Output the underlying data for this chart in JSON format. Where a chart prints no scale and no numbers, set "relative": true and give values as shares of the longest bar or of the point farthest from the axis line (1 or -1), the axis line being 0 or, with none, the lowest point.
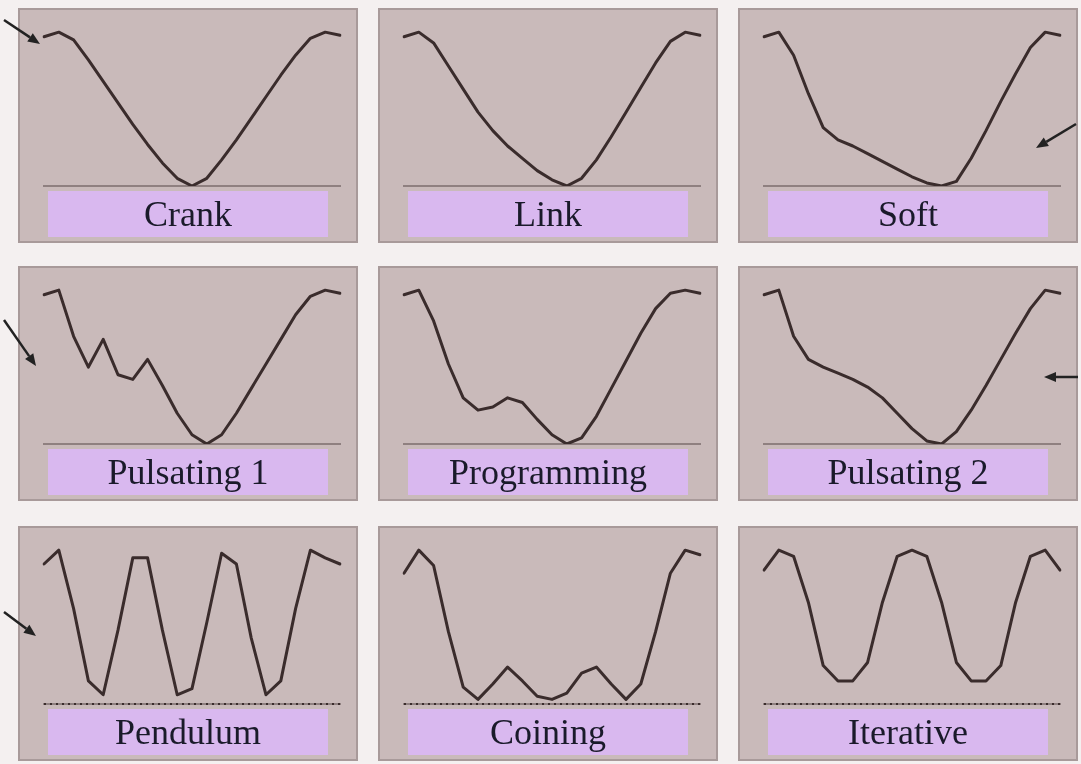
{
  "chart_data": [
    {
      "type": "line",
      "relative": true,
      "title": "Crank",
      "categories": [
        null,
        null,
        null,
        null,
        null,
        null,
        null,
        null,
        null,
        null,
        null,
        null,
        null,
        null,
        null,
        null,
        null,
        null,
        null,
        null,
        null
      ],
      "series": [
        {
          "color": "#3a2c2c",
          "values": [
            0.97,
            1,
            0.95,
            0.82,
            0.68,
            0.54,
            0.4,
            0.27,
            0.15,
            0.05,
            0,
            0.05,
            0.17,
            0.3,
            0.44,
            0.58,
            0.72,
            0.85,
            0.96,
            1,
            0.98
          ]
        }
      ]
    },
    {
      "type": "line",
      "relative": true,
      "title": "Link",
      "categories": [
        null,
        null,
        null,
        null,
        null,
        null,
        null,
        null,
        null,
        null,
        null,
        null,
        null,
        null,
        null,
        null,
        null,
        null,
        null,
        null,
        null
      ],
      "series": [
        {
          "color": "#3a2c2c",
          "values": [
            0.97,
            1,
            0.93,
            0.78,
            0.63,
            0.48,
            0.36,
            0.26,
            0.18,
            0.1,
            0.04,
            0,
            0.05,
            0.17,
            0.32,
            0.48,
            0.64,
            0.8,
            0.94,
            1,
            0.98
          ]
        }
      ]
    },
    {
      "type": "line",
      "relative": true,
      "title": "Soft",
      "categories": [
        null,
        null,
        null,
        null,
        null,
        null,
        null,
        null,
        null,
        null,
        null,
        null,
        null,
        null,
        null,
        null,
        null,
        null,
        null,
        null,
        null
      ],
      "series": [
        {
          "color": "#3a2c2c",
          "values": [
            0.97,
            1,
            0.85,
            0.6,
            0.38,
            0.3,
            0.26,
            0.21,
            0.16,
            0.11,
            0.06,
            0.02,
            0,
            0.03,
            0.18,
            0.36,
            0.55,
            0.73,
            0.9,
            1,
            0.98
          ]
        }
      ]
    },
    {
      "type": "line",
      "relative": true,
      "title": "Pulsating 1",
      "categories": [
        null,
        null,
        null,
        null,
        null,
        null,
        null,
        null,
        null,
        null,
        null,
        null,
        null,
        null,
        null,
        null,
        null,
        null,
        null,
        null,
        null
      ],
      "series": [
        {
          "color": "#3a2c2c",
          "values": [
            0.97,
            1,
            0.7,
            0.5,
            0.68,
            0.45,
            0.42,
            0.55,
            0.38,
            0.2,
            0.06,
            0,
            0.06,
            0.2,
            0.36,
            0.52,
            0.68,
            0.84,
            0.96,
            1,
            0.98
          ]
        }
      ]
    },
    {
      "type": "line",
      "relative": true,
      "title": "Programming",
      "categories": [
        null,
        null,
        null,
        null,
        null,
        null,
        null,
        null,
        null,
        null,
        null,
        null,
        null,
        null,
        null,
        null,
        null,
        null,
        null,
        null,
        null
      ],
      "series": [
        {
          "color": "#3a2c2c",
          "values": [
            0.97,
            1,
            0.8,
            0.52,
            0.3,
            0.22,
            0.24,
            0.3,
            0.27,
            0.16,
            0.06,
            0,
            0.04,
            0.18,
            0.36,
            0.54,
            0.72,
            0.88,
            0.98,
            1,
            0.98
          ]
        }
      ]
    },
    {
      "type": "line",
      "relative": true,
      "title": "Pulsating 2",
      "categories": [
        null,
        null,
        null,
        null,
        null,
        null,
        null,
        null,
        null,
        null,
        null,
        null,
        null,
        null,
        null,
        null,
        null,
        null,
        null,
        null,
        null
      ],
      "series": [
        {
          "color": "#3a2c2c",
          "values": [
            0.97,
            1,
            0.7,
            0.55,
            0.5,
            0.46,
            0.42,
            0.37,
            0.3,
            0.2,
            0.1,
            0.02,
            0,
            0.08,
            0.22,
            0.38,
            0.55,
            0.72,
            0.88,
            1,
            0.98
          ]
        }
      ]
    },
    {
      "type": "line",
      "relative": true,
      "title": "Pendulum",
      "categories": [
        null,
        null,
        null,
        null,
        null,
        null,
        null,
        null,
        null,
        null,
        null,
        null,
        null,
        null,
        null,
        null,
        null,
        null,
        null,
        null,
        null
      ],
      "series": [
        {
          "color": "#3a2c2c",
          "values": [
            0.91,
            1,
            0.62,
            0.15,
            0.06,
            0.48,
            0.95,
            0.95,
            0.48,
            0.06,
            0.1,
            0.53,
            0.98,
            0.91,
            0.43,
            0.06,
            0.15,
            0.62,
            1,
            0.95,
            0.91
          ]
        }
      ],
      "ref_lines": [
        {
          "axis": "y",
          "value": 0,
          "color": "#3a2c2c",
          "line_style": "dotted"
        }
      ]
    },
    {
      "type": "line",
      "relative": true,
      "title": "Coining",
      "categories": [
        null,
        null,
        null,
        null,
        null,
        null,
        null,
        null,
        null,
        null,
        null,
        null,
        null,
        null,
        null,
        null,
        null,
        null,
        null,
        null,
        null
      ],
      "series": [
        {
          "color": "#3a2c2c",
          "values": [
            0.85,
            1,
            0.9,
            0.47,
            0.11,
            0.03,
            0.13,
            0.24,
            0.15,
            0.05,
            0.03,
            0.07,
            0.2,
            0.24,
            0.13,
            0.03,
            0.13,
            0.47,
            0.85,
            1,
            0.97
          ]
        }
      ],
      "ref_lines": [
        {
          "axis": "y",
          "value": 0,
          "color": "#3a2c2c",
          "line_style": "dotted"
        }
      ]
    },
    {
      "type": "line",
      "relative": true,
      "title": "Iterative",
      "categories": [
        null,
        null,
        null,
        null,
        null,
        null,
        null,
        null,
        null,
        null,
        null,
        null,
        null,
        null,
        null,
        null,
        null,
        null,
        null,
        null,
        null
      ],
      "series": [
        {
          "color": "#3a2c2c",
          "values": [
            0.87,
            1,
            0.96,
            0.66,
            0.25,
            0.15,
            0.15,
            0.27,
            0.66,
            0.96,
            1,
            0.96,
            0.66,
            0.27,
            0.15,
            0.15,
            0.25,
            0.66,
            0.96,
            1,
            0.87
          ]
        }
      ],
      "ref_lines": [
        {
          "axis": "y",
          "value": 0,
          "color": "#3a2c2c",
          "line_style": "dotted"
        }
      ]
    }
  ]
}
